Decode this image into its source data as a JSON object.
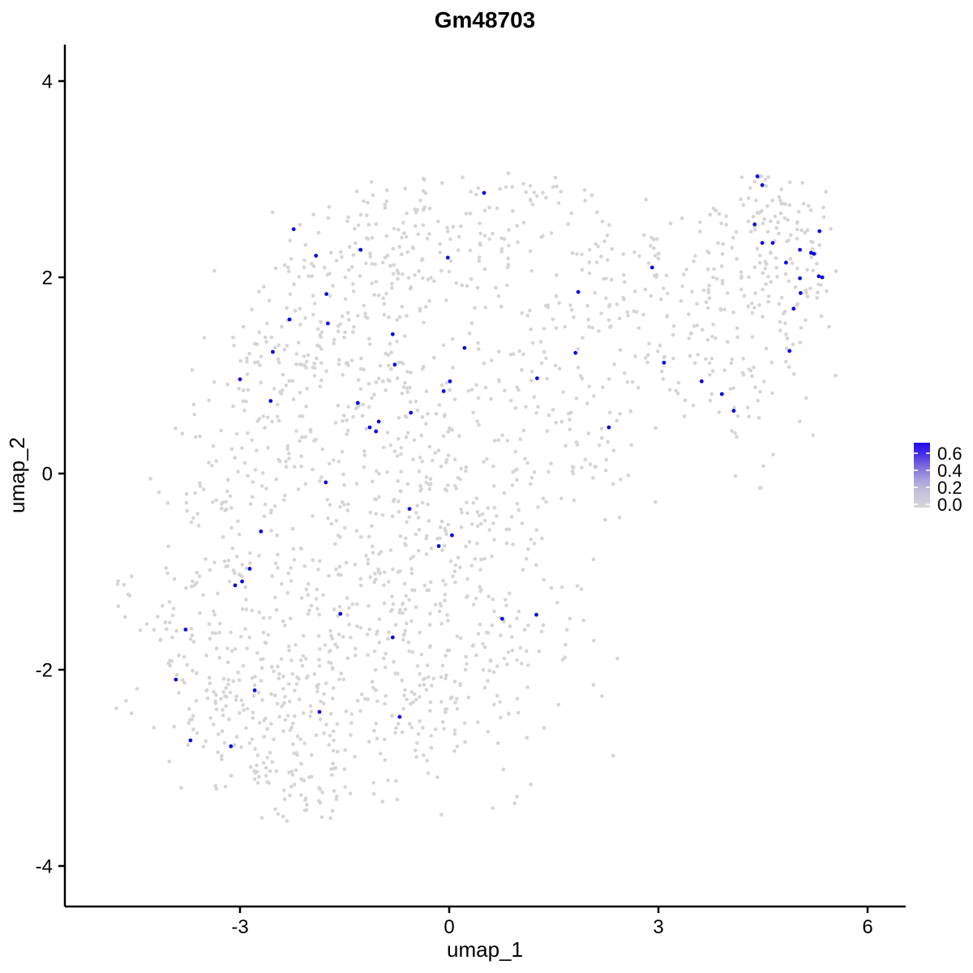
{
  "chart_data": {
    "type": "scatter",
    "title": "Gm48703",
    "xlabel": "umap_1",
    "ylabel": "umap_2",
    "x_ticks": [
      -3,
      0,
      3,
      6
    ],
    "y_ticks": [
      4,
      2,
      0,
      -2,
      -4
    ],
    "xlim": [
      -5.5,
      6.55
    ],
    "ylim": [
      -4.4,
      4.37
    ],
    "grid": false,
    "axis_color": "#000000",
    "background_color": "#ffffff",
    "legend": {
      "position": "right",
      "tick_labels": [
        "0.6",
        "0.4",
        "0.2",
        "0.0"
      ],
      "tick_values": [
        0.6,
        0.4,
        0.2,
        0.0
      ],
      "low_color": "#d7d6d8",
      "high_color": "#2008ec",
      "gradient_stops": [
        {
          "offset": 0.0,
          "color": "#2008ec"
        },
        {
          "offset": 0.18,
          "color": "#4531e6"
        },
        {
          "offset": 0.38,
          "color": "#7e70de"
        },
        {
          "offset": 0.58,
          "color": "#a8a2db"
        },
        {
          "offset": 0.78,
          "color": "#c7c4da"
        },
        {
          "offset": 1.0,
          "color": "#d7d6d8"
        }
      ]
    },
    "series": [
      {
        "name": "expressing-cells",
        "color": "#0d05e8",
        "points": [
          [
            -2.23,
            2.49
          ],
          [
            -1.27,
            2.28
          ],
          [
            -1.91,
            2.22
          ],
          [
            -0.02,
            2.2
          ],
          [
            0.5,
            2.86
          ],
          [
            -1.76,
            1.83
          ],
          [
            -2.29,
            1.57
          ],
          [
            -1.74,
            1.53
          ],
          [
            -0.81,
            1.42
          ],
          [
            -2.53,
            1.24
          ],
          [
            0.22,
            1.28
          ],
          [
            -0.78,
            1.11
          ],
          [
            -3.0,
            0.96
          ],
          [
            0.01,
            0.94
          ],
          [
            -0.08,
            0.84
          ],
          [
            -2.56,
            0.74
          ],
          [
            -1.31,
            0.72
          ],
          [
            -1.01,
            0.53
          ],
          [
            -1.14,
            0.47
          ],
          [
            -1.05,
            0.43
          ],
          [
            -0.55,
            0.62
          ],
          [
            4.42,
            3.03
          ],
          [
            4.49,
            2.94
          ],
          [
            4.38,
            2.54
          ],
          [
            5.31,
            2.47
          ],
          [
            4.49,
            2.35
          ],
          [
            4.64,
            2.35
          ],
          [
            5.03,
            2.28
          ],
          [
            5.19,
            2.25
          ],
          [
            5.23,
            2.24
          ],
          [
            4.83,
            2.15
          ],
          [
            5.3,
            2.01
          ],
          [
            5.35,
            2.0
          ],
          [
            5.03,
            1.99
          ],
          [
            5.04,
            1.84
          ],
          [
            4.94,
            1.68
          ],
          [
            2.91,
            2.1
          ],
          [
            1.85,
            1.85
          ],
          [
            1.81,
            1.23
          ],
          [
            1.26,
            0.97
          ],
          [
            3.08,
            1.13
          ],
          [
            4.88,
            1.25
          ],
          [
            3.62,
            0.94
          ],
          [
            3.91,
            0.81
          ],
          [
            4.08,
            0.64
          ],
          [
            2.29,
            0.47
          ],
          [
            -1.77,
            -0.09
          ],
          [
            -0.57,
            -0.36
          ],
          [
            -2.7,
            -0.59
          ],
          [
            0.04,
            -0.63
          ],
          [
            -0.15,
            -0.74
          ],
          [
            -2.86,
            -0.97
          ],
          [
            -2.97,
            -1.1
          ],
          [
            -3.07,
            -1.14
          ],
          [
            -1.56,
            -1.43
          ],
          [
            -3.78,
            -1.59
          ],
          [
            -0.81,
            -1.67
          ],
          [
            -3.92,
            -2.1
          ],
          [
            -2.79,
            -2.21
          ],
          [
            -1.86,
            -2.43
          ],
          [
            -0.71,
            -2.48
          ],
          [
            -3.71,
            -2.72
          ],
          [
            -3.13,
            -2.78
          ],
          [
            0.76,
            -1.48
          ],
          [
            1.25,
            -1.44
          ]
        ]
      },
      {
        "name": "background-cells",
        "color": "#d5d5d5",
        "seed": 1337,
        "bounds": {
          "x": [
            -4.85,
            5.55
          ],
          "y": [
            -3.55,
            3.1
          ]
        },
        "clusters": [
          {
            "cx": -4.65,
            "cy": -1.18,
            "sx": 0.1,
            "sy": 0.16,
            "n": 7
          },
          {
            "cx": -3.6,
            "cy": -1.9,
            "sx": 0.45,
            "sy": 0.55,
            "n": 85
          },
          {
            "cx": -2.55,
            "cy": -2.4,
            "sx": 0.65,
            "sy": 0.55,
            "n": 165
          },
          {
            "cx": -1.95,
            "cy": -3.1,
            "sx": 0.5,
            "sy": 0.28,
            "n": 55
          },
          {
            "cx": -3.1,
            "cy": -0.6,
            "sx": 0.5,
            "sy": 0.62,
            "n": 95
          },
          {
            "cx": -1.4,
            "cy": -1.7,
            "sx": 0.75,
            "sy": 0.65,
            "n": 140
          },
          {
            "cx": -0.2,
            "cy": -2.3,
            "sx": 0.7,
            "sy": 0.55,
            "n": 110
          },
          {
            "cx": 0.9,
            "cy": -1.7,
            "sx": 0.6,
            "sy": 0.55,
            "n": 75
          },
          {
            "cx": -0.9,
            "cy": -0.4,
            "sx": 0.8,
            "sy": 0.65,
            "n": 130
          },
          {
            "cx": 0.4,
            "cy": -0.6,
            "sx": 0.7,
            "sy": 0.6,
            "n": 90
          },
          {
            "cx": -2.4,
            "cy": 0.6,
            "sx": 0.6,
            "sy": 0.6,
            "n": 95
          },
          {
            "cx": -1.6,
            "cy": 1.6,
            "sx": 0.75,
            "sy": 0.7,
            "n": 150
          },
          {
            "cx": -0.6,
            "cy": 2.4,
            "sx": 0.6,
            "sy": 0.42,
            "n": 85
          },
          {
            "cx": 0.5,
            "cy": 2.45,
            "sx": 0.55,
            "sy": 0.38,
            "n": 60
          },
          {
            "cx": 1.3,
            "cy": 2.8,
            "sx": 0.35,
            "sy": 0.18,
            "n": 14
          },
          {
            "cx": -0.3,
            "cy": 0.8,
            "sx": 0.7,
            "sy": 0.6,
            "n": 90
          },
          {
            "cx": 1.2,
            "cy": 0.9,
            "sx": 0.55,
            "sy": 0.7,
            "n": 60
          },
          {
            "cx": 2.1,
            "cy": 0.3,
            "sx": 0.55,
            "sy": 0.55,
            "n": 45
          },
          {
            "cx": 2.2,
            "cy": 2.1,
            "sx": 0.45,
            "sy": 0.35,
            "n": 30
          },
          {
            "cx": 2.6,
            "cy": 1.5,
            "sx": 0.6,
            "sy": 0.6,
            "n": 70
          },
          {
            "cx": 3.6,
            "cy": 1.7,
            "sx": 0.6,
            "sy": 0.55,
            "n": 85
          },
          {
            "cx": 4.4,
            "cy": 0.9,
            "sx": 0.45,
            "sy": 0.5,
            "n": 45
          },
          {
            "cx": 4.75,
            "cy": 2.2,
            "sx": 0.5,
            "sy": 0.4,
            "n": 115
          },
          {
            "cx": 4.55,
            "cy": 2.88,
            "sx": 0.22,
            "sy": 0.18,
            "n": 18
          }
        ]
      }
    ]
  }
}
